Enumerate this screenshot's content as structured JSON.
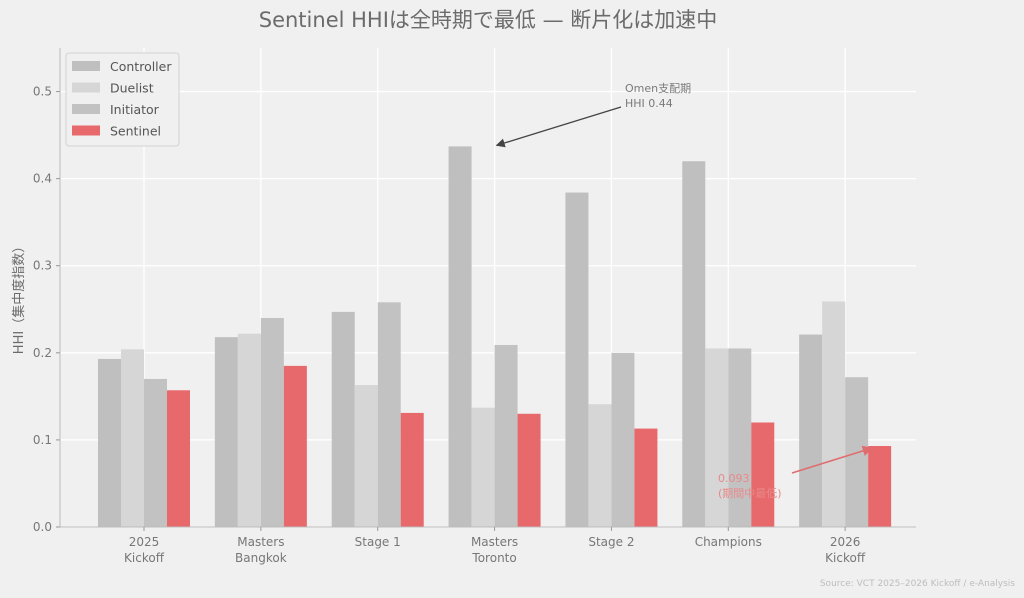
{
  "chart_data": {
    "type": "bar",
    "title": "Sentinel HHIは全時期で最低 — 断片化は加速中",
    "ylabel": "HHI（集中度指数）",
    "xlabel": "",
    "ylim": [
      0,
      0.55
    ],
    "yticks": [
      "0.0",
      "0.1",
      "0.2",
      "0.3",
      "0.4",
      "0.5"
    ],
    "grid": true,
    "legend_position": "top-left",
    "categories": [
      [
        "2025",
        "Kickoff"
      ],
      [
        "Masters",
        "Bangkok"
      ],
      [
        "Stage 1"
      ],
      [
        "Masters",
        "Toronto"
      ],
      [
        "Stage 2"
      ],
      [
        "Champions"
      ],
      [
        "2026",
        "Kickoff"
      ]
    ],
    "series": [
      {
        "name": "Controller",
        "color": "#bfbfbf",
        "values": [
          0.193,
          0.218,
          0.247,
          0.437,
          0.384,
          0.42,
          0.221
        ]
      },
      {
        "name": "Duelist",
        "color": "#d6d6d6",
        "values": [
          0.204,
          0.222,
          0.163,
          0.137,
          0.141,
          0.205,
          0.259
        ]
      },
      {
        "name": "Initiator",
        "color": "#c2c2c2",
        "values": [
          0.17,
          0.24,
          0.258,
          0.209,
          0.2,
          0.205,
          0.172
        ]
      },
      {
        "name": "Sentinel",
        "color": "#e8696b",
        "values": [
          0.157,
          0.185,
          0.131,
          0.13,
          0.113,
          0.12,
          0.093
        ]
      }
    ],
    "annotations": [
      {
        "lines": [
          "Omen支配期",
          "HHI 0.44"
        ],
        "color": "#7a7a7a",
        "arrow_color": "#444444",
        "target_category": 3,
        "target_series": 0
      },
      {
        "lines": [
          "0.093",
          "(期間中最低)"
        ],
        "color": "#e8898a",
        "arrow_color": "#e06c6e",
        "target_category": 6,
        "target_series": 3
      }
    ],
    "source": "Source: VCT 2025–2026 Kickoff / e-Analysis"
  }
}
